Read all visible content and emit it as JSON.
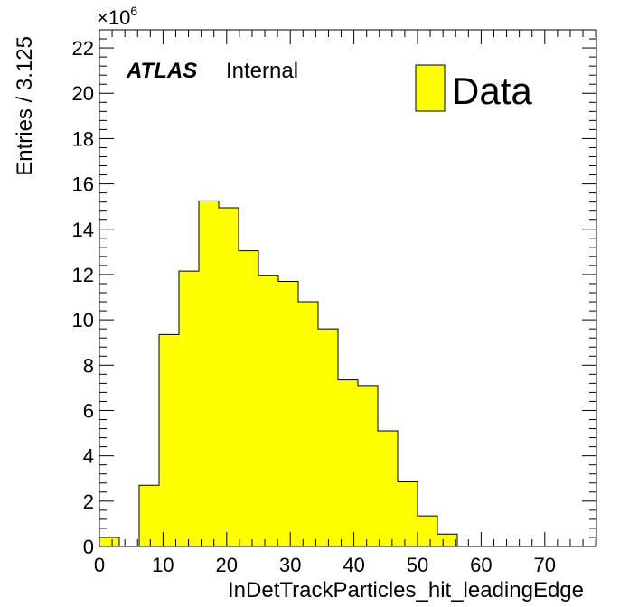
{
  "chart_data": {
    "type": "bar",
    "style": "histogram",
    "xlabel": "InDetTrackParticles_hit_leadingEdge",
    "ylabel": "Entries / 3.125",
    "y_multiplier_label": "×10",
    "y_multiplier_exponent": "6",
    "xlim": [
      0,
      78.125
    ],
    "ylim": [
      0,
      22.8
    ],
    "x_ticks": [
      0,
      10,
      20,
      30,
      40,
      50,
      60,
      70
    ],
    "x_tick_labels": [
      "0",
      "10",
      "20",
      "30",
      "40",
      "50",
      "60",
      "70"
    ],
    "y_ticks": [
      0,
      2,
      4,
      6,
      8,
      10,
      12,
      14,
      16,
      18,
      20,
      22
    ],
    "y_tick_labels": [
      "0",
      "2",
      "4",
      "6",
      "8",
      "10",
      "12",
      "14",
      "16",
      "18",
      "20",
      "22"
    ],
    "bin_width": 3.125,
    "bin_edges": [
      0,
      3.125,
      6.25,
      9.375,
      12.5,
      15.625,
      18.75,
      21.875,
      25,
      28.125,
      31.25,
      34.375,
      37.5,
      40.625,
      43.75,
      46.875,
      50,
      53.125,
      56.25
    ],
    "series": [
      {
        "name": "Data",
        "color": "#ffff00",
        "values": [
          0.4,
          0,
          2.7,
          9.35,
          12.15,
          15.25,
          14.95,
          13.05,
          11.95,
          11.7,
          10.8,
          9.6,
          7.35,
          7.1,
          5.1,
          2.85,
          1.35,
          0.55
        ]
      }
    ],
    "legend": {
      "position": "top-right",
      "entries": [
        "Data"
      ]
    },
    "annotations": {
      "atlas_label": "ATLAS",
      "status_label": "Internal"
    },
    "grid": false
  }
}
